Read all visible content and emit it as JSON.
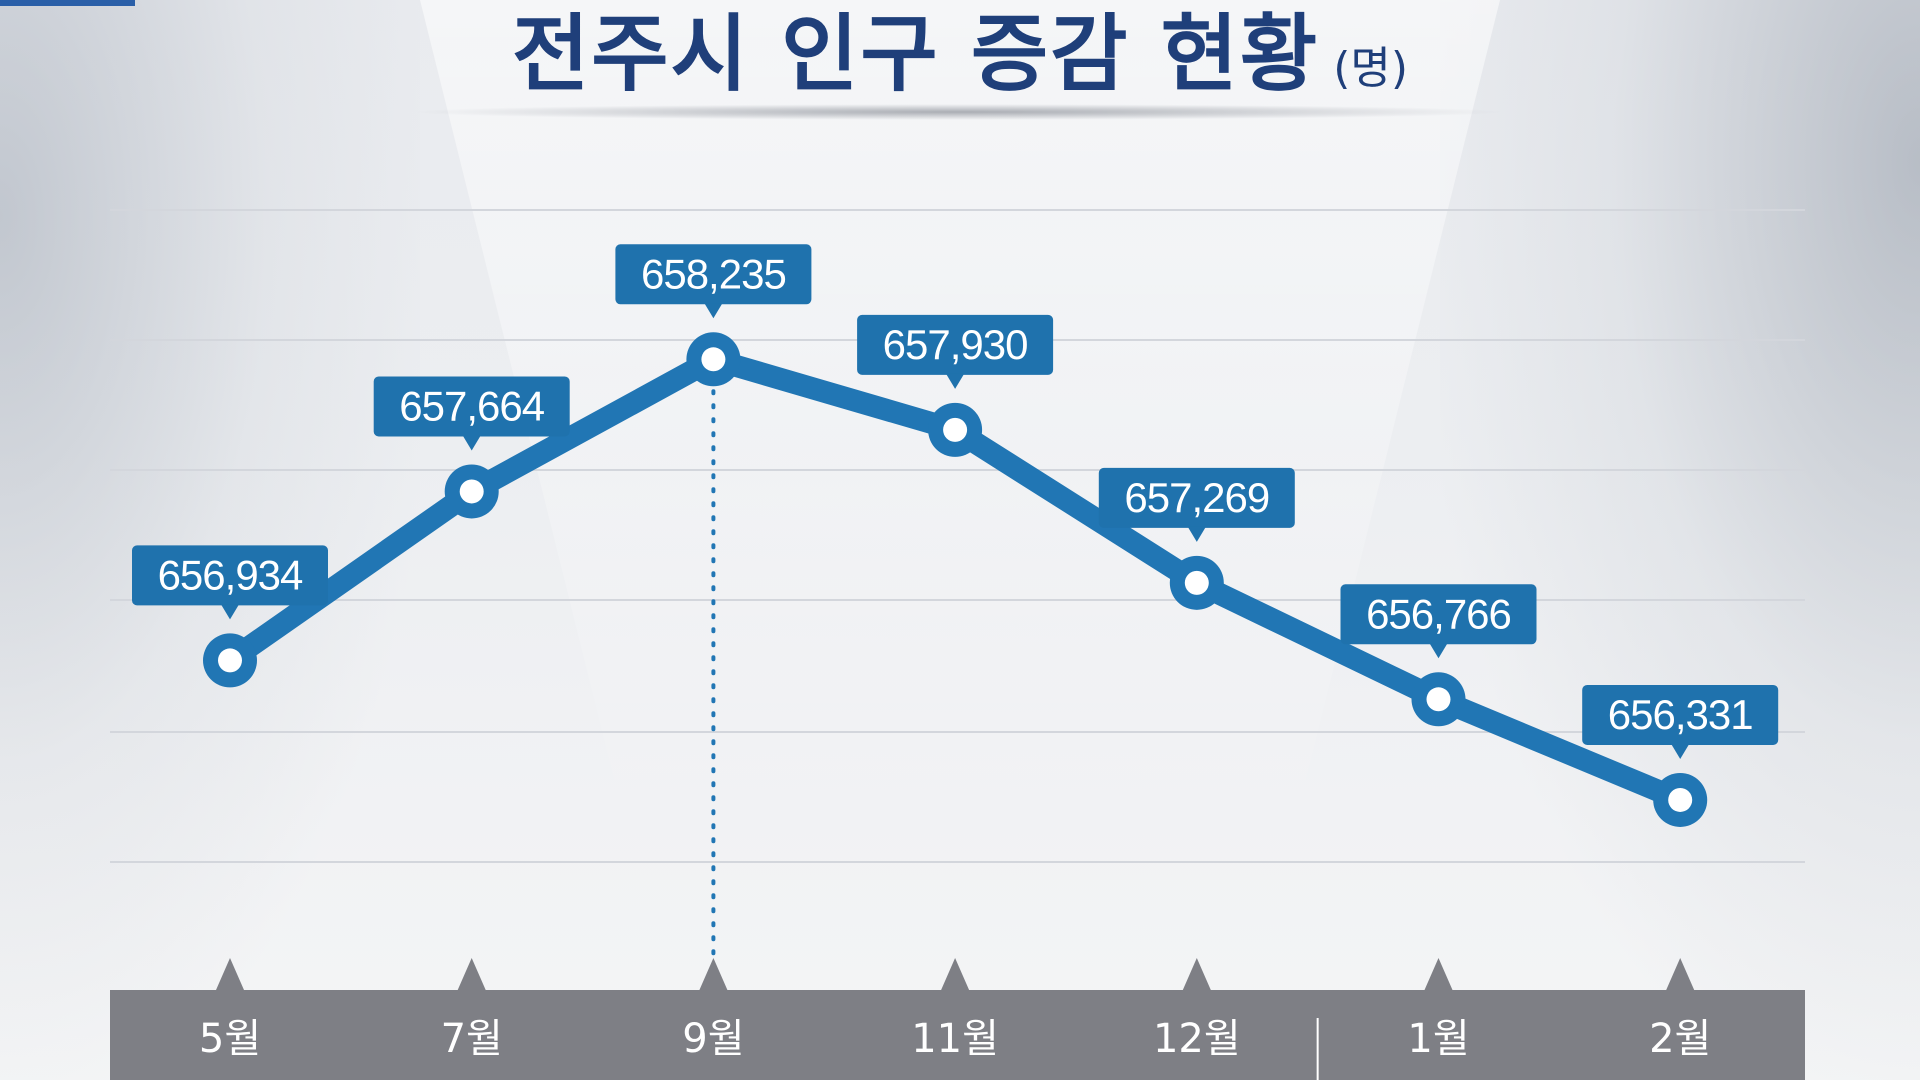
{
  "title": "전주시 인구 증감 현황",
  "unit": "(명)",
  "colors": {
    "line": "#2176b4",
    "label_bg": "#1f72ad",
    "axis_bar": "#7e7f85",
    "title": "#1f3f7a"
  },
  "chart_data": {
    "type": "line",
    "title": "전주시 인구 증감 현황",
    "unit": "(명)",
    "categories": [
      "5월",
      "7월",
      "9월",
      "11월",
      "12월",
      "1월",
      "2월"
    ],
    "series": [
      {
        "values": [
          656934,
          657664,
          658235,
          657930,
          657269,
          656766,
          656331
        ]
      }
    ],
    "data_labels": [
      "656,934",
      "657,664",
      "658,235",
      "657,930",
      "657,269",
      "656,766",
      "656,331"
    ],
    "highlight_index": 2,
    "year_divider_after_index": 4,
    "ylim": [
      656050,
      658880
    ],
    "grid": true,
    "legend": "none"
  }
}
